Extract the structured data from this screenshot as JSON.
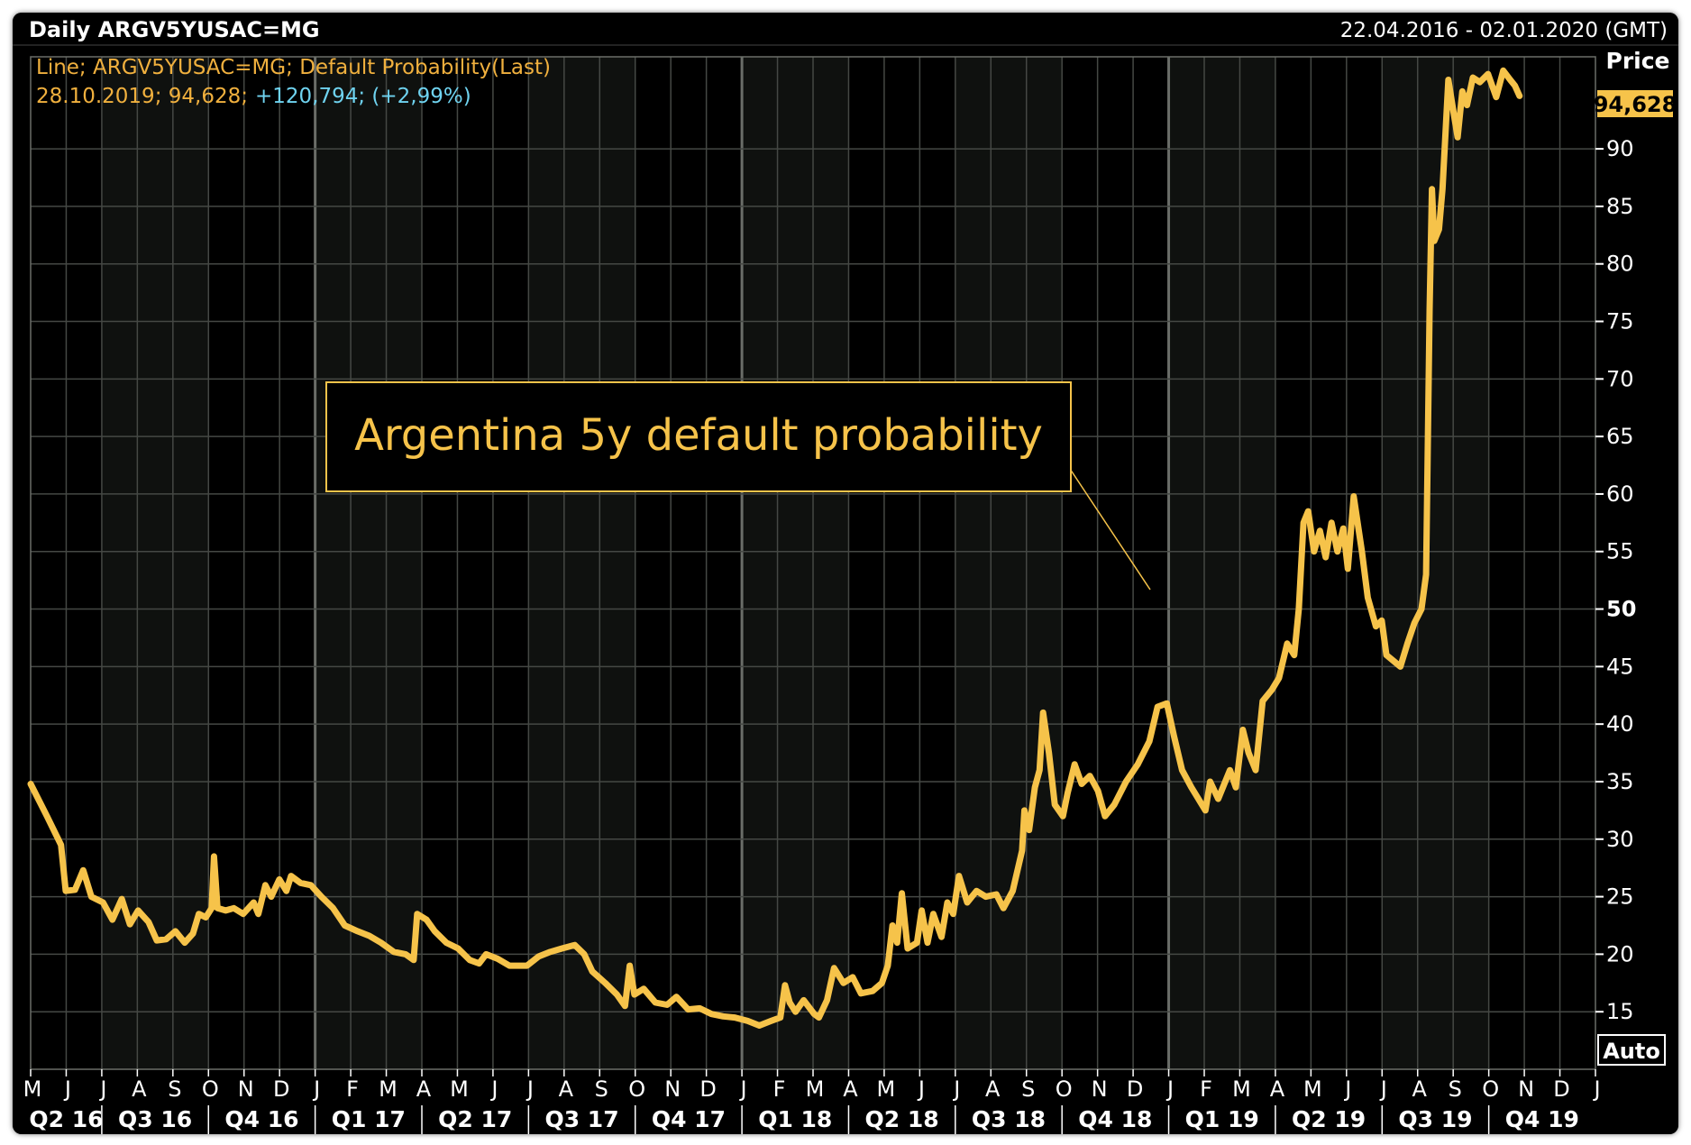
{
  "header": {
    "title": "Daily ARGV5YUSAC=MG",
    "date_range": "22.04.2016 - 02.01.2020 (GMT)"
  },
  "info": {
    "line1": "Line; ARGV5YUSAC=MG; Default Probability(Last)",
    "line2_date": "28.10.2019; 94,628;",
    "line2_change": "+120,794; (+2,99%)"
  },
  "price_axis": {
    "label": "Price",
    "last_value": "94,628",
    "auto_label": "Auto"
  },
  "annotation": "Argentina 5y default probability",
  "colors": {
    "background": "#000000",
    "grid": "#4a4d49",
    "series": "#f6c34a",
    "axis_text": "#ffffff",
    "info_orange": "#f0b03e",
    "info_cyan": "#6fd3f0",
    "badge": "#f6c34a"
  },
  "chart_data": {
    "type": "line",
    "title": "Daily ARGV5YUSAC=MG",
    "xlabel": "",
    "ylabel": "Price",
    "xlim": [
      "2016-05-01",
      "2019-12-31"
    ],
    "ylim": [
      10,
      98
    ],
    "y_ticks": [
      15,
      20,
      25,
      30,
      35,
      40,
      45,
      50,
      55,
      60,
      65,
      70,
      75,
      80,
      85,
      90
    ],
    "month_ticks": [
      "M",
      "J",
      "J",
      "A",
      "S",
      "O",
      "N",
      "D",
      "J",
      "F",
      "M",
      "A",
      "M",
      "J",
      "J",
      "A",
      "S",
      "O",
      "N",
      "D",
      "J",
      "F",
      "M",
      "A",
      "M",
      "J",
      "J",
      "A",
      "S",
      "O",
      "N",
      "D",
      "J",
      "F",
      "M",
      "A",
      "M",
      "J",
      "J",
      "A",
      "S",
      "O",
      "N",
      "D",
      "J"
    ],
    "quarter_labels": [
      "Q2 16",
      "Q3 16",
      "Q4 16",
      "Q1 17",
      "Q2 17",
      "Q3 17",
      "Q4 17",
      "Q1 18",
      "Q2 18",
      "Q3 18",
      "Q4 18",
      "Q1 19",
      "Q2 19",
      "Q3 19",
      "Q4 19"
    ],
    "grid": true,
    "series": [
      {
        "points": [
          [
            "2016-05-01",
            34.8
          ],
          [
            "2016-05-15",
            32
          ],
          [
            "2016-05-27",
            29.5
          ],
          [
            "2016-05-31",
            25.5
          ],
          [
            "2016-06-08",
            25.6
          ],
          [
            "2016-06-15",
            27.3
          ],
          [
            "2016-06-22",
            25
          ],
          [
            "2016-07-02",
            24.5
          ],
          [
            "2016-07-10",
            23
          ],
          [
            "2016-07-18",
            24.8
          ],
          [
            "2016-07-25",
            22.6
          ],
          [
            "2016-08-01",
            23.8
          ],
          [
            "2016-08-10",
            22.8
          ],
          [
            "2016-08-17",
            21.2
          ],
          [
            "2016-08-25",
            21.3
          ],
          [
            "2016-09-02",
            22
          ],
          [
            "2016-09-10",
            21
          ],
          [
            "2016-09-17",
            21.8
          ],
          [
            "2016-09-22",
            23.5
          ],
          [
            "2016-09-28",
            23.2
          ],
          [
            "2016-10-03",
            24
          ],
          [
            "2016-10-05",
            28.5
          ],
          [
            "2016-10-08",
            24
          ],
          [
            "2016-10-15",
            23.8
          ],
          [
            "2016-10-22",
            24
          ],
          [
            "2016-10-30",
            23.5
          ],
          [
            "2016-11-08",
            24.5
          ],
          [
            "2016-11-12",
            23.5
          ],
          [
            "2016-11-18",
            26
          ],
          [
            "2016-11-23",
            25
          ],
          [
            "2016-11-30",
            26.5
          ],
          [
            "2016-12-06",
            25.5
          ],
          [
            "2016-12-10",
            26.8
          ],
          [
            "2016-12-18",
            26.2
          ],
          [
            "2016-12-27",
            26
          ],
          [
            "2017-01-05",
            25
          ],
          [
            "2017-01-15",
            24
          ],
          [
            "2017-01-25",
            22.5
          ],
          [
            "2017-02-05",
            22
          ],
          [
            "2017-02-15",
            21.6
          ],
          [
            "2017-02-25",
            21
          ],
          [
            "2017-03-08",
            20.2
          ],
          [
            "2017-03-18",
            20
          ],
          [
            "2017-03-25",
            19.5
          ],
          [
            "2017-03-28",
            23.5
          ],
          [
            "2017-04-05",
            23
          ],
          [
            "2017-04-12",
            22
          ],
          [
            "2017-04-22",
            21
          ],
          [
            "2017-05-02",
            20.5
          ],
          [
            "2017-05-12",
            19.5
          ],
          [
            "2017-05-20",
            19.2
          ],
          [
            "2017-05-26",
            20
          ],
          [
            "2017-06-05",
            19.6
          ],
          [
            "2017-06-15",
            19
          ],
          [
            "2017-06-30",
            19
          ],
          [
            "2017-07-10",
            19.8
          ],
          [
            "2017-07-20",
            20.2
          ],
          [
            "2017-07-30",
            20.5
          ],
          [
            "2017-08-10",
            20.8
          ],
          [
            "2017-08-18",
            20
          ],
          [
            "2017-08-25",
            18.5
          ],
          [
            "2017-09-05",
            17.5
          ],
          [
            "2017-09-15",
            16.5
          ],
          [
            "2017-09-22",
            15.5
          ],
          [
            "2017-09-26",
            19
          ],
          [
            "2017-09-30",
            16.5
          ],
          [
            "2017-10-08",
            17
          ],
          [
            "2017-10-18",
            15.8
          ],
          [
            "2017-10-28",
            15.6
          ],
          [
            "2017-11-05",
            16.3
          ],
          [
            "2017-11-15",
            15.2
          ],
          [
            "2017-11-25",
            15.3
          ],
          [
            "2017-12-05",
            14.8
          ],
          [
            "2017-12-15",
            14.6
          ],
          [
            "2017-12-25",
            14.5
          ],
          [
            "2018-01-05",
            14.2
          ],
          [
            "2018-01-15",
            13.8
          ],
          [
            "2018-01-25",
            14.2
          ],
          [
            "2018-02-02",
            14.5
          ],
          [
            "2018-02-06",
            17.3
          ],
          [
            "2018-02-10",
            15.8
          ],
          [
            "2018-02-15",
            15
          ],
          [
            "2018-02-22",
            16
          ],
          [
            "2018-02-28",
            15.2
          ],
          [
            "2018-03-03",
            14.8
          ],
          [
            "2018-03-07",
            14.5
          ],
          [
            "2018-03-14",
            16
          ],
          [
            "2018-03-20",
            18.8
          ],
          [
            "2018-03-28",
            17.5
          ],
          [
            "2018-04-05",
            18
          ],
          [
            "2018-04-12",
            16.6
          ],
          [
            "2018-04-22",
            16.8
          ],
          [
            "2018-04-30",
            17.5
          ],
          [
            "2018-05-05",
            19
          ],
          [
            "2018-05-09",
            22.5
          ],
          [
            "2018-05-13",
            21
          ],
          [
            "2018-05-17",
            25.3
          ],
          [
            "2018-05-22",
            20.5
          ],
          [
            "2018-05-30",
            21
          ],
          [
            "2018-06-03",
            23.8
          ],
          [
            "2018-06-08",
            21
          ],
          [
            "2018-06-13",
            23.5
          ],
          [
            "2018-06-20",
            21.5
          ],
          [
            "2018-06-25",
            24.5
          ],
          [
            "2018-06-30",
            23.5
          ],
          [
            "2018-07-05",
            26.8
          ],
          [
            "2018-07-12",
            24.5
          ],
          [
            "2018-07-20",
            25.5
          ],
          [
            "2018-07-28",
            25
          ],
          [
            "2018-08-06",
            25.2
          ],
          [
            "2018-08-12",
            24
          ],
          [
            "2018-08-20",
            25.5
          ],
          [
            "2018-08-28",
            29
          ],
          [
            "2018-08-30",
            32.5
          ],
          [
            "2018-09-03",
            30.8
          ],
          [
            "2018-09-08",
            34.5
          ],
          [
            "2018-09-12",
            36
          ],
          [
            "2018-09-15",
            41
          ],
          [
            "2018-09-20",
            37.5
          ],
          [
            "2018-09-25",
            33
          ],
          [
            "2018-10-02",
            32
          ],
          [
            "2018-10-06",
            34
          ],
          [
            "2018-10-12",
            36.5
          ],
          [
            "2018-10-18",
            34.8
          ],
          [
            "2018-10-25",
            35.5
          ],
          [
            "2018-11-01",
            34.2
          ],
          [
            "2018-11-07",
            32
          ],
          [
            "2018-11-15",
            33
          ],
          [
            "2018-11-25",
            35
          ],
          [
            "2018-12-05",
            36.5
          ],
          [
            "2018-12-15",
            38.5
          ],
          [
            "2018-12-22",
            41.5
          ],
          [
            "2018-12-30",
            41.8
          ],
          [
            "2019-01-05",
            39
          ],
          [
            "2019-01-12",
            36
          ],
          [
            "2019-01-20",
            34.5
          ],
          [
            "2019-01-26",
            33.5
          ],
          [
            "2019-02-01",
            32.5
          ],
          [
            "2019-02-05",
            35
          ],
          [
            "2019-02-12",
            33.5
          ],
          [
            "2019-02-22",
            36
          ],
          [
            "2019-02-27",
            34.5
          ],
          [
            "2019-03-05",
            39.5
          ],
          [
            "2019-03-10",
            37.5
          ],
          [
            "2019-03-16",
            36
          ],
          [
            "2019-03-22",
            42
          ],
          [
            "2019-03-30",
            43
          ],
          [
            "2019-04-05",
            44
          ],
          [
            "2019-04-12",
            47
          ],
          [
            "2019-04-18",
            46
          ],
          [
            "2019-04-22",
            50
          ],
          [
            "2019-04-26",
            57.5
          ],
          [
            "2019-04-30",
            58.5
          ],
          [
            "2019-05-05",
            55
          ],
          [
            "2019-05-10",
            56.8
          ],
          [
            "2019-05-15",
            54.5
          ],
          [
            "2019-05-20",
            57.5
          ],
          [
            "2019-05-25",
            55
          ],
          [
            "2019-05-30",
            57
          ],
          [
            "2019-06-03",
            53.5
          ],
          [
            "2019-06-08",
            59.8
          ],
          [
            "2019-06-15",
            55
          ],
          [
            "2019-06-20",
            51
          ],
          [
            "2019-06-27",
            48.5
          ],
          [
            "2019-07-02",
            49
          ],
          [
            "2019-07-06",
            46
          ],
          [
            "2019-07-12",
            45.5
          ],
          [
            "2019-07-18",
            45
          ],
          [
            "2019-07-24",
            47
          ],
          [
            "2019-07-30",
            48.8
          ],
          [
            "2019-08-05",
            50
          ],
          [
            "2019-08-09",
            53
          ],
          [
            "2019-08-12",
            76
          ],
          [
            "2019-08-14",
            86.5
          ],
          [
            "2019-08-16",
            82
          ],
          [
            "2019-08-20",
            83
          ],
          [
            "2019-08-23",
            86.5
          ],
          [
            "2019-08-28",
            96
          ],
          [
            "2019-09-01",
            93.5
          ],
          [
            "2019-09-05",
            91
          ],
          [
            "2019-09-09",
            95
          ],
          [
            "2019-09-13",
            93.8
          ],
          [
            "2019-09-18",
            96.2
          ],
          [
            "2019-09-24",
            95.8
          ],
          [
            "2019-10-01",
            96.5
          ],
          [
            "2019-10-08",
            94.5
          ],
          [
            "2019-10-14",
            96.8
          ],
          [
            "2019-10-20",
            96
          ],
          [
            "2019-10-24",
            95.5
          ],
          [
            "2019-10-28",
            94.6
          ]
        ]
      }
    ]
  }
}
